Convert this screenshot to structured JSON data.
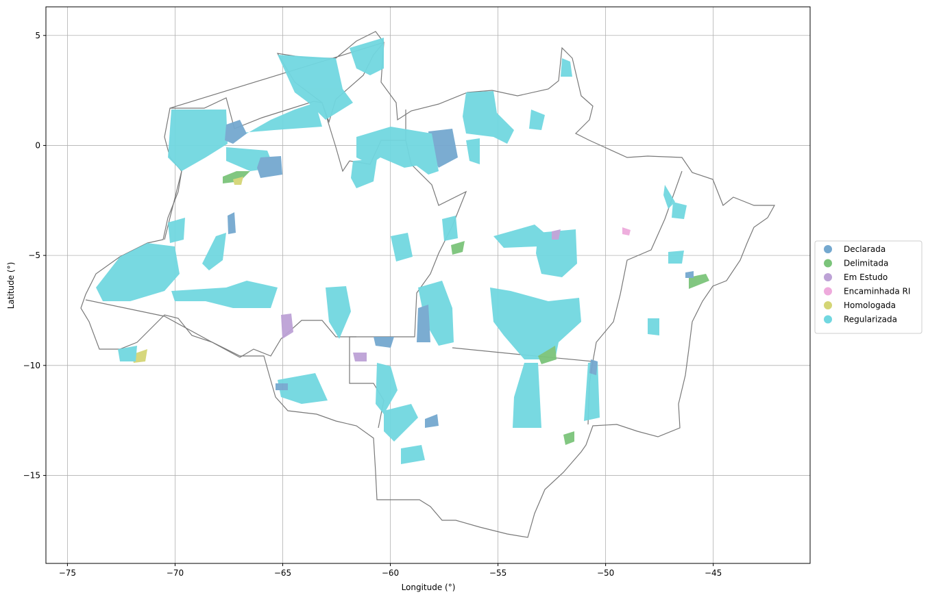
{
  "chart_data": {
    "type": "map",
    "title": "",
    "xlabel": "Longitude (°)",
    "ylabel": "Latitude (°)",
    "xlim": [
      -76.0,
      -40.5
    ],
    "ylim": [
      -19.0,
      6.3
    ],
    "x_ticks": [
      -75,
      -70,
      -65,
      -60,
      -55,
      -50,
      -45
    ],
    "y_ticks": [
      5,
      0,
      -5,
      -10,
      -15
    ],
    "x_tick_labels": [
      "−75",
      "−70",
      "−65",
      "−60",
      "−55",
      "−50",
      "−45"
    ],
    "y_tick_labels": [
      "5",
      "0",
      "−5",
      "−10",
      "−15"
    ],
    "grid": true,
    "legend_position": "right",
    "legend": [
      {
        "name": "Declarada",
        "color": "#74a8cf"
      },
      {
        "name": "Delimitada",
        "color": "#7bc47a"
      },
      {
        "name": "Em Estudo",
        "color": "#bda2d6"
      },
      {
        "name": "Encaminhada RI",
        "color": "#eeaadc"
      },
      {
        "name": "Homologada",
        "color": "#d4d575"
      },
      {
        "name": "Regularizada",
        "color": "#71d7e0"
      }
    ],
    "boundary_color": "#787878"
  }
}
